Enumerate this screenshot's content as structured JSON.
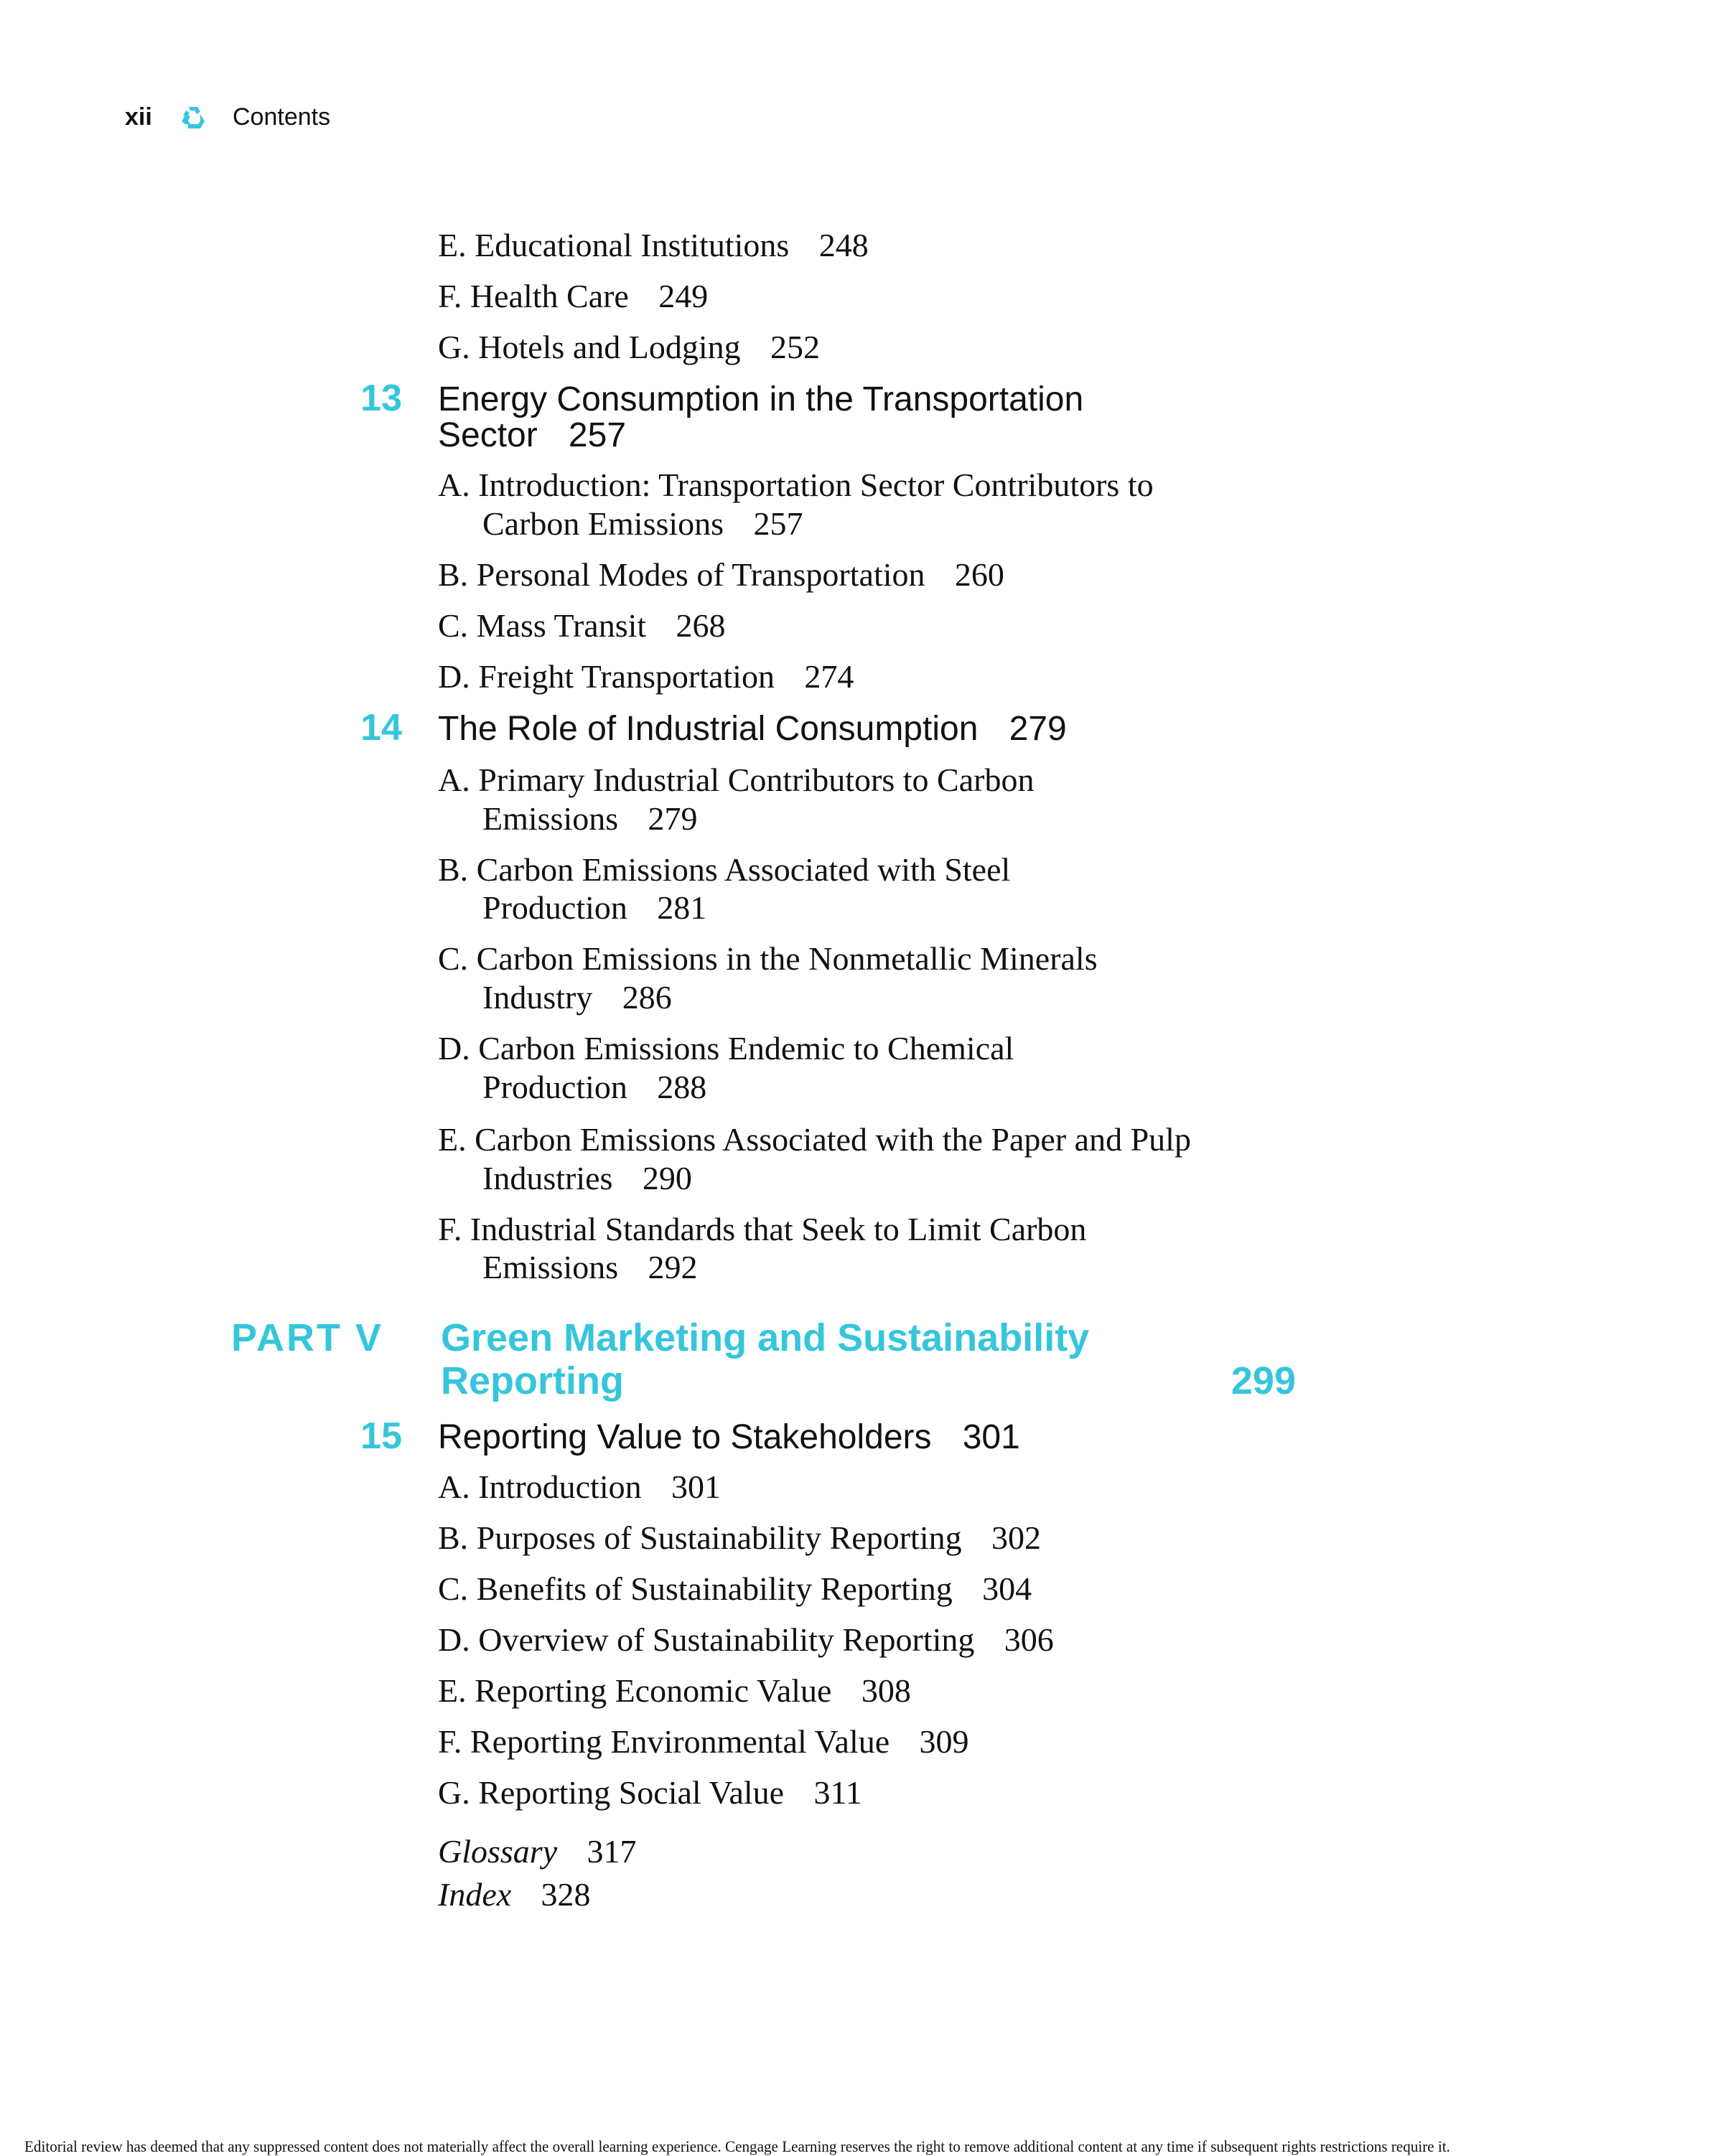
{
  "header": {
    "page_number": "xii",
    "icon": "recycle-icon",
    "title": "Contents",
    "accent_color": "#35c6dc"
  },
  "entries_top": [
    {
      "label": "E. Educational Institutions",
      "page": "248"
    },
    {
      "label": "F. Health Care",
      "page": "249"
    },
    {
      "label": "G. Hotels and Lodging",
      "page": "252"
    }
  ],
  "ch13": {
    "number": "13",
    "title_line1": "Energy Consumption in the Transportation",
    "title_line2": "Sector",
    "page": "257",
    "sections": [
      {
        "line1": "A. Introduction: Transportation Sector Contributors to",
        "line2": "Carbon Emissions",
        "page": "257"
      },
      {
        "line1": "B. Personal Modes of Transportation",
        "page": "260"
      },
      {
        "line1": "C. Mass Transit",
        "page": "268"
      },
      {
        "line1": "D. Freight Transportation",
        "page": "274"
      }
    ]
  },
  "ch14": {
    "number": "14",
    "title": "The Role of Industrial Consumption",
    "page": "279",
    "sections": [
      {
        "line1": "A. Primary Industrial Contributors to Carbon",
        "line2": "Emissions",
        "page": "279"
      },
      {
        "line1": "B. Carbon Emissions Associated with Steel",
        "line2": "Production",
        "page": "281"
      },
      {
        "line1": "C. Carbon Emissions in the Nonmetallic Minerals",
        "line2": "Industry",
        "page": "286"
      },
      {
        "line1": "D. Carbon Emissions Endemic to Chemical",
        "line2": "Production",
        "page": "288"
      },
      {
        "line1": "E. Carbon Emissions Associated with the Paper and Pulp",
        "line2": "Industries",
        "page": "290"
      },
      {
        "line1": "F. Industrial Standards that Seek to Limit Carbon",
        "line2": "Emissions",
        "page": "292"
      }
    ]
  },
  "part5": {
    "label": "PART V",
    "title_line1": "Green Marketing and Sustainability",
    "title_line2": "Reporting",
    "page": "299"
  },
  "ch15": {
    "number": "15",
    "title": "Reporting Value to Stakeholders",
    "page": "301",
    "sections": [
      {
        "line1": "A. Introduction",
        "page": "301"
      },
      {
        "line1": "B. Purposes of Sustainability Reporting",
        "page": "302"
      },
      {
        "line1": "C. Benefits of Sustainability Reporting",
        "page": "304"
      },
      {
        "line1": "D. Overview of Sustainability Reporting",
        "page": "306"
      },
      {
        "line1": "E. Reporting Economic Value",
        "page": "308"
      },
      {
        "line1": "F. Reporting Environmental Value",
        "page": "309"
      },
      {
        "line1": "G. Reporting Social Value",
        "page": "311"
      }
    ]
  },
  "back_matter": [
    {
      "label": "Glossary",
      "page": "317"
    },
    {
      "label": "Index",
      "page": "328"
    }
  ],
  "footer": "Editorial review has deemed that any suppressed content does not materially affect the overall learning experience. Cengage Learning reserves the right to remove additional content at any time if subsequent rights restrictions require it."
}
